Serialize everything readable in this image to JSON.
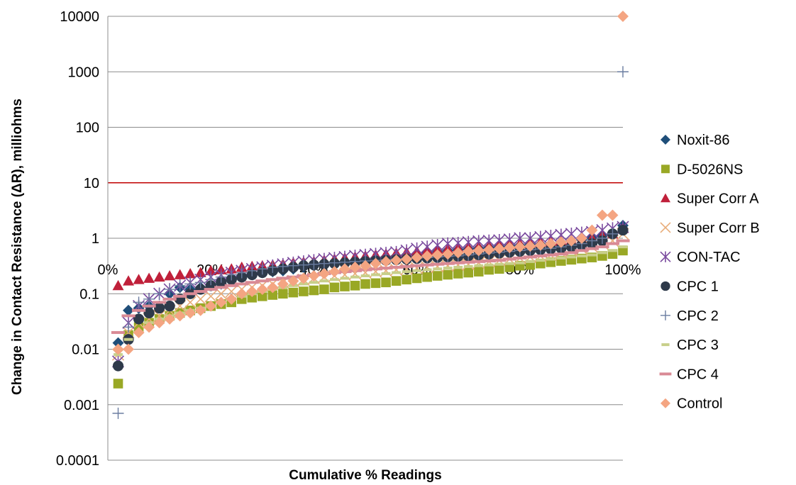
{
  "chart_data": {
    "type": "scatter",
    "title": "",
    "xlabel": "Cumulative % Readings",
    "ylabel": "Change in Contact Resistance (ΔR), milliohms",
    "x_scale": "linear",
    "y_scale": "log",
    "xlim": [
      0,
      100
    ],
    "ylim": [
      0.0001,
      10000
    ],
    "x_tick_labels": [
      "0%",
      "20%",
      "40%",
      "60%",
      "80%",
      "100%"
    ],
    "y_tick_labels": [
      "10000",
      "1000",
      "100",
      "10",
      "1",
      "0.1",
      "0.01",
      "0.001",
      "0.0001"
    ],
    "grid": "horizontal",
    "legend_position": "right",
    "reference_line": {
      "y": 10,
      "color": "#c00000"
    },
    "series": [
      {
        "name": "Noxit-86",
        "marker": "diamond",
        "color": "#1f4e79",
        "x": [
          2,
          4,
          6,
          8,
          10,
          12,
          14,
          16,
          18,
          20,
          22,
          24,
          26,
          28,
          30,
          32,
          34,
          36,
          38,
          40,
          42,
          44,
          46,
          48,
          50,
          52,
          54,
          56,
          58,
          60,
          62,
          64,
          66,
          68,
          70,
          72,
          74,
          76,
          78,
          80,
          82,
          84,
          86,
          88,
          90,
          92,
          94,
          96,
          98,
          100
        ],
        "y": [
          0.013,
          0.05,
          0.055,
          0.06,
          0.06,
          0.1,
          0.13,
          0.12,
          0.13,
          0.14,
          0.15,
          0.18,
          0.2,
          0.22,
          0.24,
          0.25,
          0.26,
          0.28,
          0.3,
          0.32,
          0.34,
          0.36,
          0.38,
          0.4,
          0.42,
          0.44,
          0.46,
          0.48,
          0.5,
          0.52,
          0.55,
          0.57,
          0.6,
          0.62,
          0.64,
          0.66,
          0.68,
          0.7,
          0.72,
          0.74,
          0.76,
          0.78,
          0.8,
          0.85,
          0.9,
          0.95,
          1.0,
          1.1,
          1.2,
          1.7
        ]
      },
      {
        "name": "D-5026NS",
        "marker": "square",
        "color": "#99a825",
        "x": [
          2,
          4,
          6,
          8,
          10,
          12,
          14,
          16,
          18,
          20,
          22,
          24,
          26,
          28,
          30,
          32,
          34,
          36,
          38,
          40,
          42,
          44,
          46,
          48,
          50,
          52,
          54,
          56,
          58,
          60,
          62,
          64,
          66,
          68,
          70,
          72,
          74,
          76,
          78,
          80,
          82,
          84,
          86,
          88,
          90,
          92,
          94,
          96,
          98,
          100
        ],
        "y": [
          0.0024,
          0.018,
          0.025,
          0.03,
          0.035,
          0.04,
          0.045,
          0.05,
          0.055,
          0.06,
          0.065,
          0.07,
          0.08,
          0.085,
          0.09,
          0.095,
          0.1,
          0.105,
          0.11,
          0.115,
          0.12,
          0.13,
          0.135,
          0.14,
          0.15,
          0.155,
          0.16,
          0.17,
          0.18,
          0.19,
          0.2,
          0.21,
          0.22,
          0.23,
          0.24,
          0.25,
          0.27,
          0.28,
          0.3,
          0.32,
          0.33,
          0.35,
          0.37,
          0.39,
          0.41,
          0.43,
          0.45,
          0.48,
          0.52,
          0.6
        ]
      },
      {
        "name": "Super Corr A",
        "marker": "triangle",
        "color": "#c0203a",
        "x": [
          2,
          4,
          6,
          8,
          10,
          12,
          14,
          16,
          18,
          20,
          22,
          24,
          26,
          28,
          30,
          32,
          34,
          36,
          38,
          40,
          42,
          44,
          46,
          48,
          50,
          52,
          54,
          56,
          58,
          60,
          62,
          64,
          66,
          68,
          70,
          72,
          74,
          76,
          78,
          80,
          82,
          84,
          86,
          88,
          90,
          92,
          94,
          96,
          98,
          100
        ],
        "y": [
          0.14,
          0.17,
          0.18,
          0.19,
          0.2,
          0.21,
          0.22,
          0.23,
          0.24,
          0.26,
          0.27,
          0.28,
          0.3,
          0.31,
          0.32,
          0.33,
          0.34,
          0.36,
          0.37,
          0.38,
          0.4,
          0.42,
          0.44,
          0.46,
          0.48,
          0.5,
          0.52,
          0.54,
          0.56,
          0.58,
          0.6,
          0.62,
          0.64,
          0.66,
          0.68,
          0.7,
          0.72,
          0.75,
          0.78,
          0.8,
          0.82,
          0.85,
          0.88,
          0.9,
          0.92,
          0.95,
          1.0,
          1.1,
          1.2,
          1.5
        ]
      },
      {
        "name": "Super Corr B",
        "marker": "x",
        "color": "#e8ad7a",
        "x": [
          2,
          4,
          6,
          8,
          10,
          12,
          14,
          16,
          18,
          20,
          22,
          24,
          26,
          28,
          30,
          32,
          34,
          36,
          38,
          40,
          42,
          44,
          46,
          48,
          50,
          52,
          54,
          56,
          58,
          60,
          62,
          64,
          66,
          68,
          70,
          72,
          74,
          76,
          78,
          80,
          82,
          84,
          86,
          88,
          90,
          92,
          94,
          96,
          98,
          100
        ],
        "y": [
          0.008,
          0.02,
          0.03,
          0.035,
          0.04,
          0.05,
          0.06,
          0.07,
          0.08,
          0.09,
          0.1,
          0.11,
          0.12,
          0.13,
          0.14,
          0.15,
          0.16,
          0.17,
          0.18,
          0.19,
          0.2,
          0.21,
          0.22,
          0.23,
          0.24,
          0.25,
          0.26,
          0.27,
          0.28,
          0.29,
          0.3,
          0.31,
          0.32,
          0.33,
          0.34,
          0.36,
          0.38,
          0.4,
          0.42,
          0.44,
          0.46,
          0.48,
          0.5,
          0.55,
          0.6,
          0.65,
          0.7,
          0.8,
          0.9,
          1.2
        ]
      },
      {
        "name": "CON-TAC",
        "marker": "asterisk",
        "color": "#7a4a9e",
        "x": [
          2,
          4,
          6,
          8,
          10,
          12,
          14,
          16,
          18,
          20,
          22,
          24,
          26,
          28,
          30,
          32,
          34,
          36,
          38,
          40,
          42,
          44,
          46,
          48,
          50,
          52,
          54,
          56,
          58,
          60,
          62,
          64,
          66,
          68,
          70,
          72,
          74,
          76,
          78,
          80,
          82,
          84,
          86,
          88,
          90,
          92,
          94,
          96,
          98,
          100
        ],
        "y": [
          0.006,
          0.03,
          0.06,
          0.08,
          0.1,
          0.12,
          0.14,
          0.16,
          0.18,
          0.2,
          0.22,
          0.24,
          0.26,
          0.28,
          0.3,
          0.32,
          0.34,
          0.36,
          0.38,
          0.4,
          0.42,
          0.44,
          0.46,
          0.48,
          0.5,
          0.52,
          0.54,
          0.56,
          0.6,
          0.65,
          0.7,
          0.75,
          0.8,
          0.82,
          0.85,
          0.88,
          0.9,
          0.92,
          0.95,
          1.0,
          1.0,
          1.05,
          1.1,
          1.15,
          1.2,
          1.25,
          1.3,
          1.4,
          1.5,
          1.6
        ]
      },
      {
        "name": "CPC 1",
        "marker": "circle",
        "color": "#2e3a4a",
        "x": [
          2,
          4,
          6,
          8,
          10,
          12,
          14,
          16,
          18,
          20,
          22,
          24,
          26,
          28,
          30,
          32,
          34,
          36,
          38,
          40,
          42,
          44,
          46,
          48,
          50,
          52,
          54,
          56,
          58,
          60,
          62,
          64,
          66,
          68,
          70,
          72,
          74,
          76,
          78,
          80,
          82,
          84,
          86,
          88,
          90,
          92,
          94,
          96,
          98,
          100
        ],
        "y": [
          0.005,
          0.015,
          0.035,
          0.045,
          0.055,
          0.06,
          0.08,
          0.1,
          0.12,
          0.14,
          0.16,
          0.18,
          0.2,
          0.22,
          0.24,
          0.26,
          0.28,
          0.3,
          0.32,
          0.33,
          0.34,
          0.35,
          0.36,
          0.37,
          0.38,
          0.39,
          0.4,
          0.41,
          0.42,
          0.43,
          0.44,
          0.45,
          0.46,
          0.47,
          0.48,
          0.5,
          0.52,
          0.54,
          0.56,
          0.58,
          0.6,
          0.62,
          0.64,
          0.66,
          0.7,
          0.75,
          0.8,
          0.9,
          1.2,
          1.4
        ]
      },
      {
        "name": "CPC 2",
        "marker": "plus",
        "color": "#6a7ca0",
        "x": [
          2,
          4,
          6,
          8,
          10,
          12,
          14,
          16,
          18,
          20,
          22,
          24,
          26,
          28,
          30,
          32,
          34,
          36,
          38,
          40,
          42,
          44,
          46,
          48,
          50,
          52,
          54,
          56,
          58,
          60,
          62,
          64,
          66,
          68,
          70,
          72,
          74,
          76,
          78,
          80,
          82,
          84,
          86,
          88,
          90,
          92,
          94,
          96,
          98,
          100
        ],
        "y": [
          0.0007,
          0.025,
          0.07,
          0.08,
          0.1,
          0.12,
          0.14,
          0.15,
          0.16,
          0.18,
          0.2,
          0.22,
          0.24,
          0.26,
          0.28,
          0.3,
          0.31,
          0.32,
          0.33,
          0.34,
          0.35,
          0.36,
          0.37,
          0.38,
          0.39,
          0.4,
          0.41,
          0.42,
          0.43,
          0.44,
          0.45,
          0.46,
          0.47,
          0.48,
          0.5,
          0.52,
          0.54,
          0.56,
          0.58,
          0.6,
          0.62,
          0.64,
          0.66,
          0.7,
          0.75,
          0.8,
          0.9,
          1.0,
          1.2,
          1000
        ]
      },
      {
        "name": "CPC 3",
        "marker": "dash",
        "color": "#c8cf8a",
        "x": [
          2,
          4,
          6,
          8,
          10,
          12,
          14,
          16,
          18,
          20,
          22,
          24,
          26,
          28,
          30,
          32,
          34,
          36,
          38,
          40,
          42,
          44,
          46,
          48,
          50,
          52,
          54,
          56,
          58,
          60,
          62,
          64,
          66,
          68,
          70,
          72,
          74,
          76,
          78,
          80,
          82,
          84,
          86,
          88,
          90,
          92,
          94,
          96,
          98,
          100
        ],
        "y": [
          0.008,
          0.015,
          0.02,
          0.03,
          0.035,
          0.04,
          0.045,
          0.05,
          0.055,
          0.06,
          0.07,
          0.08,
          0.09,
          0.1,
          0.11,
          0.12,
          0.13,
          0.14,
          0.15,
          0.16,
          0.17,
          0.18,
          0.19,
          0.2,
          0.21,
          0.22,
          0.23,
          0.24,
          0.25,
          0.26,
          0.27,
          0.28,
          0.29,
          0.3,
          0.31,
          0.32,
          0.33,
          0.34,
          0.35,
          0.36,
          0.38,
          0.4,
          0.42,
          0.44,
          0.46,
          0.48,
          0.5,
          0.55,
          0.6,
          0.7
        ]
      },
      {
        "name": "CPC 4",
        "marker": "bar",
        "color": "#d98a95",
        "x": [
          2,
          4,
          6,
          8,
          10,
          12,
          14,
          16,
          18,
          20,
          22,
          24,
          26,
          28,
          30,
          32,
          34,
          36,
          38,
          40,
          42,
          44,
          46,
          48,
          50,
          52,
          54,
          56,
          58,
          60,
          62,
          64,
          66,
          68,
          70,
          72,
          74,
          76,
          78,
          80,
          82,
          84,
          86,
          88,
          90,
          92,
          94,
          96,
          98,
          100
        ],
        "y": [
          0.02,
          0.04,
          0.05,
          0.06,
          0.07,
          0.08,
          0.09,
          0.1,
          0.11,
          0.12,
          0.13,
          0.14,
          0.15,
          0.16,
          0.17,
          0.18,
          0.19,
          0.2,
          0.21,
          0.22,
          0.23,
          0.24,
          0.25,
          0.26,
          0.27,
          0.28,
          0.29,
          0.3,
          0.31,
          0.32,
          0.33,
          0.34,
          0.35,
          0.36,
          0.37,
          0.38,
          0.39,
          0.4,
          0.42,
          0.44,
          0.46,
          0.48,
          0.5,
          0.52,
          0.55,
          0.6,
          0.65,
          0.7,
          0.8,
          0.9
        ]
      },
      {
        "name": "Control",
        "marker": "diamond",
        "color": "#f4a582",
        "x": [
          2,
          4,
          6,
          8,
          10,
          12,
          14,
          16,
          18,
          20,
          22,
          24,
          26,
          28,
          30,
          32,
          34,
          36,
          38,
          40,
          42,
          44,
          46,
          48,
          50,
          52,
          54,
          56,
          58,
          60,
          62,
          64,
          66,
          68,
          70,
          72,
          74,
          76,
          78,
          80,
          82,
          84,
          86,
          88,
          90,
          92,
          94,
          96,
          98,
          100
        ],
        "y": [
          0.01,
          0.01,
          0.02,
          0.025,
          0.03,
          0.035,
          0.04,
          0.045,
          0.05,
          0.06,
          0.07,
          0.08,
          0.1,
          0.11,
          0.12,
          0.13,
          0.15,
          0.17,
          0.19,
          0.21,
          0.23,
          0.25,
          0.28,
          0.3,
          0.32,
          0.35,
          0.38,
          0.4,
          0.42,
          0.45,
          0.48,
          0.5,
          0.52,
          0.55,
          0.58,
          0.6,
          0.62,
          0.65,
          0.68,
          0.7,
          0.72,
          0.75,
          0.8,
          0.85,
          0.9,
          1.0,
          1.4,
          2.6,
          2.6,
          10000
        ]
      }
    ]
  }
}
